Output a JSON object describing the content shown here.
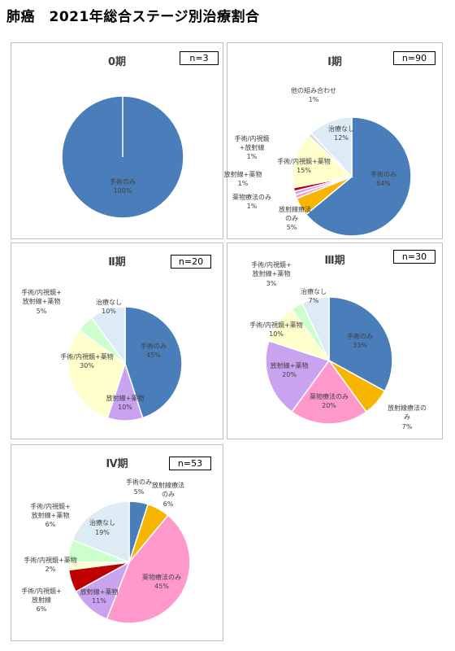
{
  "page_title": "肺癌　2021年総合ステージ別治療割合",
  "colors": {
    "surgery": "#4a7ebb",
    "radiation_only": "#f6b600",
    "drug_only": "#ff99cc",
    "radiation_drug": "#c9a3ef",
    "surgery_endo_drug": "#ffffcc",
    "surgery_endo_radiation": "#c00000",
    "surgery_endo_radiation_drug": "#ccffcc",
    "no_treatment": "#dcebf4",
    "other": "#d9d9d9"
  },
  "chart_data": [
    {
      "type": "pie",
      "title": "0期",
      "n_label": "n=3",
      "slices": [
        {
          "label": "手術のみ",
          "pct": "100%",
          "value": 100,
          "color": "surgery"
        }
      ]
    },
    {
      "type": "pie",
      "title": "Ⅰ期",
      "n_label": "n=90",
      "slices": [
        {
          "label": "手術のみ",
          "pct": "64%",
          "value": 64,
          "color": "surgery"
        },
        {
          "label": "放射線療法のみ",
          "pct": "5%",
          "value": 5,
          "color": "radiation_only"
        },
        {
          "label": "薬物療法のみ",
          "pct": "1%",
          "value": 1,
          "color": "drug_only"
        },
        {
          "label": "放射線+薬物",
          "pct": "1%",
          "value": 1,
          "color": "radiation_drug"
        },
        {
          "label": "手術/内視鏡+放射線",
          "pct": "1%",
          "value": 1,
          "color": "surgery_endo_radiation"
        },
        {
          "label": "手術/内視鏡+薬物",
          "pct": "15%",
          "value": 15,
          "color": "surgery_endo_drug"
        },
        {
          "label": "他の組み合わせ",
          "pct": "1%",
          "value": 1,
          "color": "other"
        },
        {
          "label": "治療なし",
          "pct": "12%",
          "value": 12,
          "color": "no_treatment"
        }
      ]
    },
    {
      "type": "pie",
      "title": "Ⅱ期",
      "n_label": "n=20",
      "slices": [
        {
          "label": "手術のみ",
          "pct": "45%",
          "value": 45,
          "color": "surgery"
        },
        {
          "label": "放射線+薬物",
          "pct": "10%",
          "value": 10,
          "color": "radiation_drug"
        },
        {
          "label": "手術/内視鏡+薬物",
          "pct": "30%",
          "value": 30,
          "color": "surgery_endo_drug"
        },
        {
          "label": "手術/内視鏡+放射線+薬物",
          "pct": "5%",
          "value": 5,
          "color": "surgery_endo_radiation_drug"
        },
        {
          "label": "治療なし",
          "pct": "10%",
          "value": 10,
          "color": "no_treatment"
        }
      ]
    },
    {
      "type": "pie",
      "title": "Ⅲ期",
      "n_label": "n=30",
      "slices": [
        {
          "label": "手術のみ",
          "pct": "33%",
          "value": 33,
          "color": "surgery"
        },
        {
          "label": "放射線療法のみ",
          "pct": "7%",
          "value": 7,
          "color": "radiation_only"
        },
        {
          "label": "薬物療法のみ",
          "pct": "20%",
          "value": 20,
          "color": "drug_only"
        },
        {
          "label": "放射線+薬物",
          "pct": "20%",
          "value": 20,
          "color": "radiation_drug"
        },
        {
          "label": "手術/内視鏡+薬物",
          "pct": "10%",
          "value": 10,
          "color": "surgery_endo_drug"
        },
        {
          "label": "手術/内視鏡+放射線+薬物",
          "pct": "3%",
          "value": 3,
          "color": "surgery_endo_radiation_drug"
        },
        {
          "label": "治療なし",
          "pct": "7%",
          "value": 7,
          "color": "no_treatment"
        }
      ]
    },
    {
      "type": "pie",
      "title": "Ⅳ期",
      "n_label": "n=53",
      "slices": [
        {
          "label": "手術のみ",
          "pct": "5%",
          "value": 5,
          "color": "surgery"
        },
        {
          "label": "放射線療法のみ",
          "pct": "6%",
          "value": 6,
          "color": "radiation_only"
        },
        {
          "label": "薬物療法のみ",
          "pct": "45%",
          "value": 45,
          "color": "drug_only"
        },
        {
          "label": "放射線+薬物",
          "pct": "11%",
          "value": 11,
          "color": "radiation_drug"
        },
        {
          "label": "手術/内視鏡+放射線",
          "pct": "6%",
          "value": 6,
          "color": "surgery_endo_radiation"
        },
        {
          "label": "手術/内視鏡+薬物",
          "pct": "2%",
          "value": 2,
          "color": "surgery_endo_drug"
        },
        {
          "label": "手術/内視鏡+放射線+薬物",
          "pct": "6%",
          "value": 6,
          "color": "surgery_endo_radiation_drug"
        },
        {
          "label": "治療なし",
          "pct": "19%",
          "value": 19,
          "color": "no_treatment"
        }
      ]
    }
  ]
}
